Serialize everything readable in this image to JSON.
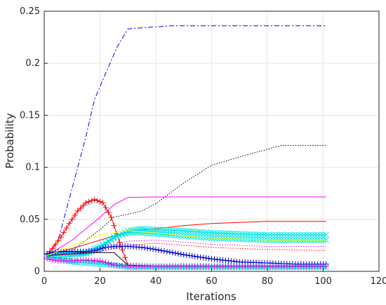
{
  "chart_data": {
    "type": "line",
    "title": "",
    "xlabel": "Iterations",
    "ylabel": "Probability",
    "xlim": [
      0,
      120
    ],
    "ylim": [
      0,
      0.25
    ],
    "xticks": [
      0,
      20,
      40,
      60,
      80,
      100,
      120
    ],
    "yticks": [
      0,
      0.05,
      0.1,
      0.15,
      0.2,
      0.25
    ],
    "grid": true,
    "legend": "none",
    "series": [
      {
        "color": "#0000ff",
        "style": "dashdot",
        "marker": "none",
        "x": [
          1,
          5,
          10,
          15,
          18,
          22,
          26,
          30,
          45,
          60,
          80,
          101
        ],
        "y": [
          0.015,
          0.03,
          0.08,
          0.13,
          0.165,
          0.19,
          0.215,
          0.233,
          0.236,
          0.236,
          0.236,
          0.236
        ]
      },
      {
        "color": "#000000",
        "style": "dotted",
        "marker": "none",
        "x": [
          1,
          10,
          20,
          25,
          30,
          35,
          40,
          50,
          60,
          70,
          85,
          101
        ],
        "y": [
          0.015,
          0.02,
          0.04,
          0.052,
          0.055,
          0.058,
          0.065,
          0.085,
          0.102,
          0.11,
          0.121,
          0.121
        ]
      },
      {
        "color": "#ff00ff",
        "style": "solid",
        "marker": "none",
        "x": [
          1,
          10,
          20,
          25,
          30,
          40,
          60,
          80,
          101
        ],
        "y": [
          0.015,
          0.03,
          0.052,
          0.064,
          0.071,
          0.0715,
          0.0715,
          0.0715,
          0.0715
        ]
      },
      {
        "color": "#ff0000",
        "style": "solid",
        "marker": "plus",
        "x": [
          1,
          3,
          6,
          9,
          12,
          15,
          18,
          21,
          24,
          27,
          30,
          35,
          40,
          50,
          60,
          70,
          80,
          90,
          101
        ],
        "y": [
          0.016,
          0.022,
          0.033,
          0.046,
          0.058,
          0.066,
          0.069,
          0.066,
          0.052,
          0.028,
          0.006,
          0.005,
          0.005,
          0.005,
          0.005,
          0.005,
          0.005,
          0.005,
          0.005
        ]
      },
      {
        "color": "#ff0000",
        "style": "solid",
        "marker": "none",
        "x": [
          1,
          10,
          20,
          30,
          40,
          50,
          60,
          70,
          80,
          101
        ],
        "y": [
          0.015,
          0.022,
          0.03,
          0.038,
          0.041,
          0.044,
          0.046,
          0.047,
          0.048,
          0.048
        ]
      },
      {
        "color": "#00e5e5",
        "style": "solid",
        "marker": "x",
        "x": [
          1,
          5,
          10,
          15,
          20,
          25,
          30,
          35,
          40,
          50,
          60,
          70,
          80,
          90,
          101
        ],
        "y": [
          0.015,
          0.016,
          0.016,
          0.017,
          0.022,
          0.032,
          0.039,
          0.041,
          0.04,
          0.039,
          0.037,
          0.036,
          0.035,
          0.035,
          0.035
        ]
      },
      {
        "color": "#00e5e5",
        "style": "solid",
        "marker": "x",
        "x": [
          1,
          5,
          10,
          15,
          20,
          25,
          30,
          35,
          40,
          50,
          60,
          70,
          80,
          90,
          101
        ],
        "y": [
          0.015,
          0.016,
          0.017,
          0.018,
          0.024,
          0.033,
          0.037,
          0.037,
          0.036,
          0.034,
          0.032,
          0.031,
          0.03,
          0.03,
          0.03
        ]
      },
      {
        "color": "#00e5e5",
        "style": "solid",
        "marker": "x",
        "x": [
          1,
          5,
          10,
          15,
          20,
          25,
          30,
          40,
          50,
          60,
          70,
          80,
          90,
          101
        ],
        "y": [
          0.015,
          0.012,
          0.009,
          0.008,
          0.007,
          0.006,
          0.004,
          0.004,
          0.004,
          0.004,
          0.004,
          0.004,
          0.004,
          0.004
        ]
      },
      {
        "color": "#0000cd",
        "style": "solid",
        "marker": "plus",
        "x": [
          1,
          5,
          10,
          15,
          18,
          22,
          26,
          30,
          35,
          40,
          50,
          60,
          70,
          80,
          90,
          101
        ],
        "y": [
          0.017,
          0.019,
          0.019,
          0.019,
          0.02,
          0.023,
          0.024,
          0.024,
          0.023,
          0.021,
          0.016,
          0.012,
          0.009,
          0.008,
          0.007,
          0.007
        ]
      },
      {
        "color": "#000000",
        "style": "solid",
        "marker": "none",
        "x": [
          1,
          5,
          10,
          15,
          20,
          25,
          30,
          40,
          60,
          80,
          101
        ],
        "y": [
          0.015,
          0.016,
          0.017,
          0.018,
          0.018,
          0.018,
          0.006,
          0.005,
          0.005,
          0.005,
          0.005
        ]
      },
      {
        "color": "#ff00ff",
        "style": "dotted",
        "marker": "none",
        "x": [
          1,
          10,
          20,
          30,
          40,
          50,
          60,
          70,
          80,
          101
        ],
        "y": [
          0.015,
          0.017,
          0.021,
          0.029,
          0.03,
          0.028,
          0.026,
          0.025,
          0.024,
          0.024
        ]
      },
      {
        "color": "#ff0000",
        "style": "dotted",
        "marker": "none",
        "x": [
          1,
          10,
          20,
          30,
          40,
          50,
          60,
          70,
          80,
          101
        ],
        "y": [
          0.015,
          0.016,
          0.019,
          0.025,
          0.027,
          0.025,
          0.023,
          0.022,
          0.021,
          0.02
        ]
      },
      {
        "color": "#ffff00",
        "style": "solid",
        "marker": "none",
        "x": [
          1,
          10,
          20,
          30,
          40,
          50,
          60,
          80,
          101
        ],
        "y": [
          0.015,
          0.025,
          0.035,
          0.039,
          0.037,
          0.034,
          0.032,
          0.03,
          0.03
        ]
      },
      {
        "color": "#ff00ff",
        "style": "solid",
        "marker": "plus",
        "x": [
          1,
          5,
          10,
          15,
          20,
          25,
          30,
          40,
          60,
          80,
          101
        ],
        "y": [
          0.012,
          0.01,
          0.01,
          0.011,
          0.01,
          0.006,
          0.005,
          0.005,
          0.005,
          0.005,
          0.005
        ]
      },
      {
        "color": "#008080",
        "style": "dashed",
        "marker": "none",
        "x": [
          1,
          10,
          20,
          30,
          40,
          60,
          80,
          101
        ],
        "y": [
          0.014,
          0.012,
          0.009,
          0.006,
          0.005,
          0.005,
          0.005,
          0.005
        ]
      }
    ]
  }
}
